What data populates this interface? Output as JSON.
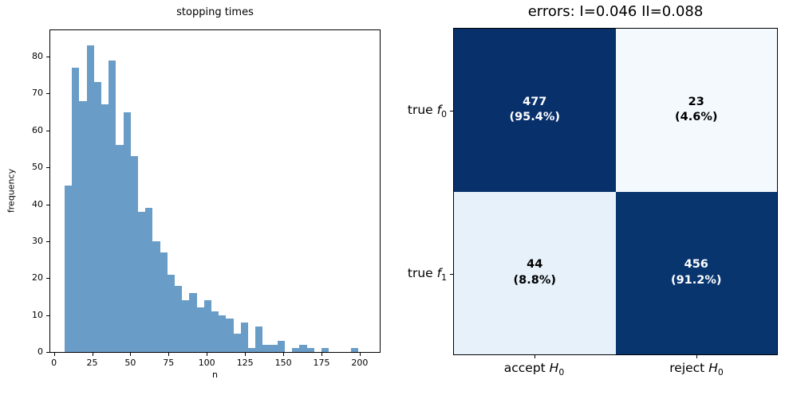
{
  "left_plot": {
    "title": "stopping times",
    "xlabel": "n",
    "ylabel": "frequency",
    "bar_color": "#699cc6",
    "xticks": [
      0,
      25,
      50,
      75,
      100,
      125,
      150,
      175,
      200
    ],
    "yticks": [
      0,
      10,
      20,
      30,
      40,
      50,
      60,
      70,
      80
    ],
    "xlim": [
      -2.4,
      213.1
    ],
    "ylim": [
      0,
      87.1
    ],
    "bin_start": 7,
    "bin_width": 4.8,
    "heights": [
      45,
      77,
      68,
      83,
      73,
      67,
      79,
      56,
      65,
      53,
      38,
      39,
      30,
      27,
      21,
      18,
      14,
      16,
      12,
      14,
      11,
      10,
      9,
      5,
      8,
      1,
      7,
      2,
      2,
      3,
      0,
      1,
      2,
      1,
      0,
      1,
      0,
      0,
      0,
      1
    ]
  },
  "right_plot": {
    "title": "errors: I=0.046 II=0.088",
    "row_labels": [
      {
        "word": "true",
        "sym": "f",
        "sub": "0"
      },
      {
        "word": "true",
        "sym": "f",
        "sub": "1"
      }
    ],
    "col_labels": [
      {
        "word": "accept",
        "sym": "H",
        "sub": "0"
      },
      {
        "word": "reject",
        "sym": "H",
        "sub": "0"
      }
    ],
    "cells": [
      [
        {
          "value": "477",
          "pct": "(95.4%)",
          "bg": "#08306b",
          "fg": "#ffffff"
        },
        {
          "value": "23",
          "pct": "(4.6%)",
          "bg": "#f4f9fe",
          "fg": "#000000"
        }
      ],
      [
        {
          "value": "44",
          "pct": "(8.8%)",
          "bg": "#e7f1fa",
          "fg": "#000000"
        },
        {
          "value": "456",
          "pct": "(91.2%)",
          "bg": "#09356f",
          "fg": "#ffffff"
        }
      ]
    ]
  },
  "chart_data": [
    {
      "type": "bar",
      "subtype": "histogram",
      "title": "stopping times",
      "xlabel": "n",
      "ylabel": "frequency",
      "bin_edges_rule": "40 bins of width 4.8 from 7 to 199",
      "bin_starts": [
        7,
        11.8,
        16.6,
        21.4,
        26.2,
        31,
        35.8,
        40.6,
        45.4,
        50.2,
        55,
        59.8,
        64.6,
        69.4,
        74.2,
        79,
        83.8,
        88.6,
        93.4,
        98.2,
        103,
        107.8,
        112.6,
        117.4,
        122.2,
        127,
        131.8,
        136.6,
        141.4,
        146.2,
        151,
        155.8,
        160.6,
        165.4,
        170.2,
        175,
        179.8,
        184.6,
        189.4,
        194.2
      ],
      "values": [
        45,
        77,
        68,
        83,
        73,
        67,
        79,
        56,
        65,
        53,
        38,
        39,
        30,
        27,
        21,
        18,
        14,
        16,
        12,
        14,
        11,
        10,
        9,
        5,
        8,
        1,
        7,
        2,
        2,
        3,
        0,
        1,
        2,
        1,
        0,
        1,
        0,
        0,
        0,
        1
      ],
      "xlim": [
        -2.4,
        213.1
      ],
      "ylim": [
        0,
        87.1
      ],
      "xticks": [
        0,
        25,
        50,
        75,
        100,
        125,
        150,
        175,
        200
      ],
      "yticks": [
        0,
        10,
        20,
        30,
        40,
        50,
        60,
        70,
        80
      ],
      "grid": false,
      "legend": false,
      "bar_color": "#699cc6"
    },
    {
      "type": "heatmap",
      "subtype": "confusion-matrix",
      "title": "errors: I=0.046 II=0.088",
      "rows": [
        "true f0",
        "true f1"
      ],
      "columns": [
        "accept H0",
        "reject H0"
      ],
      "values": [
        [
          477,
          23
        ],
        [
          44,
          456
        ]
      ],
      "percentages": [
        [
          95.4,
          4.6
        ],
        [
          8.8,
          91.2
        ]
      ],
      "type_I_error": 0.046,
      "type_II_error": 0.088,
      "colormap": "Blues",
      "dark_color": "#08306b",
      "light_color": "#f4f9fe"
    }
  ]
}
